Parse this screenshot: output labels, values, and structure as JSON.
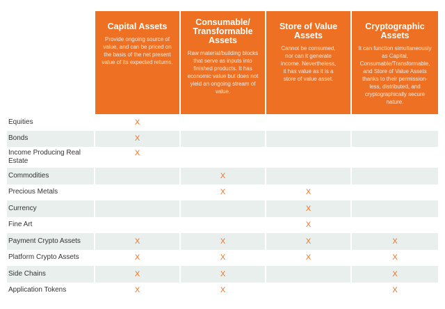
{
  "columns": [
    {
      "title": "Capital Assets",
      "desc": "Provide ongoing source of value, and can be priced on the basis of the net present value of its expected returns."
    },
    {
      "title": "Consumable/ Transformable Assets",
      "desc": "Raw material/building blocks that serve as inputs into finished products. It has economic value but does not yield an ongoing stream of value."
    },
    {
      "title": "Store of Value Assets",
      "desc": "Cannot be consumed, nor can it generate income. Nevertheless, it has value as it is a store of value asset."
    },
    {
      "title": "Cryptographic Assets",
      "desc": "It can function simultaneously as Capital, Consumable/Transformable, and Store of Value Assets thanks to their permission-less, distributed, and cryptographically secure nature."
    }
  ],
  "mark_symbol": "X",
  "rows": [
    {
      "label": "Equities",
      "marks": [
        true,
        false,
        false,
        false
      ]
    },
    {
      "label": "Bonds",
      "marks": [
        true,
        false,
        false,
        false
      ]
    },
    {
      "label": "Income Producing Real Estate",
      "marks": [
        true,
        false,
        false,
        false
      ]
    },
    {
      "label": "Commodities",
      "marks": [
        false,
        true,
        false,
        false
      ]
    },
    {
      "label": "Precious Metals",
      "marks": [
        false,
        true,
        true,
        false
      ]
    },
    {
      "label": "Currency",
      "marks": [
        false,
        false,
        true,
        false
      ]
    },
    {
      "label": "Fine Art",
      "marks": [
        false,
        false,
        true,
        false
      ]
    },
    {
      "label": "Payment Crypto Assets",
      "marks": [
        true,
        true,
        true,
        true
      ]
    },
    {
      "label": "Platform Crypto Assets",
      "marks": [
        true,
        true,
        true,
        true
      ]
    },
    {
      "label": "Side Chains",
      "marks": [
        true,
        true,
        false,
        true
      ]
    },
    {
      "label": "Application Tokens",
      "marks": [
        true,
        true,
        false,
        true
      ]
    }
  ],
  "colors": {
    "accent": "#ee7022",
    "row_shade": "#e8efec"
  }
}
